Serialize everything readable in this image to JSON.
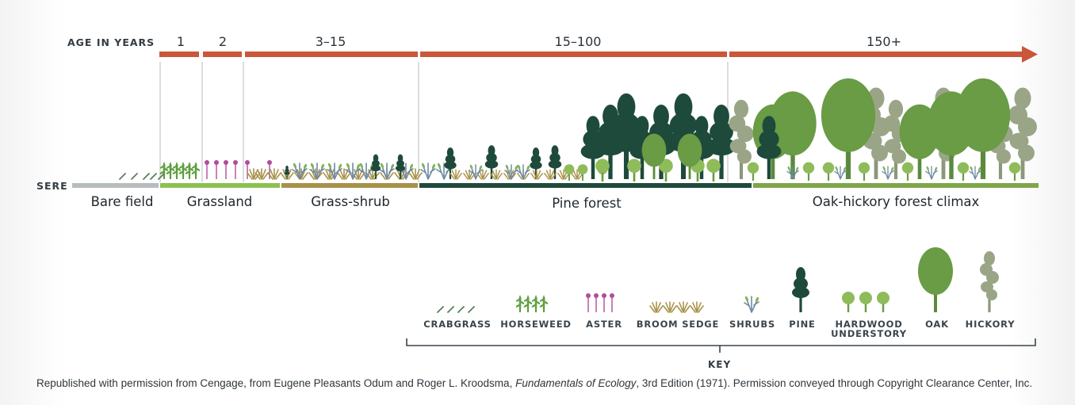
{
  "axis": {
    "age_title": "AGE IN YEARS",
    "sere_title": "SERE",
    "ages": [
      "1",
      "2",
      "3–15",
      "15–100",
      "150+"
    ]
  },
  "stages": [
    "Bare field",
    "Grassland",
    "Grass-shrub",
    "Pine forest",
    "Oak-hickory forest climax"
  ],
  "key": {
    "title": "KEY",
    "items": [
      "CRABGRASS",
      "HORSEWEED",
      "ASTER",
      "BROOM SEDGE",
      "SHRUBS",
      "PINE",
      "HARDWOOD\nUNDERSTORY",
      "OAK",
      "HICKORY"
    ]
  },
  "credit": {
    "prefix": "Republished with permission from Cengage, from Eugene Pleasants Odum and Roger L. Kroodsma, ",
    "book": "Fundamentals of Ecology",
    "suffix": ", 3rd Edition (1971). Permission conveyed through Copyright Clearance Center, Inc."
  },
  "colors": {
    "age_arrow": "#c9573a",
    "bare_field": "#b7bcbd",
    "grassland": "#8cc152",
    "grass_shrub": "#a8924a",
    "pine_forest": "#1f4b3c",
    "oak_hickory": "#7fa64a",
    "pine": "#1e4a3b",
    "oak": "#6a9b45",
    "hardwood": "#8fbc5a",
    "hickory": "#9aa588",
    "aster": "#b14c9a",
    "broom_sedge": "#a8924a",
    "horseweed": "#5e9e3e",
    "crabgrass": "#5a7f5c",
    "shrubs": "#6f8aa3"
  }
}
